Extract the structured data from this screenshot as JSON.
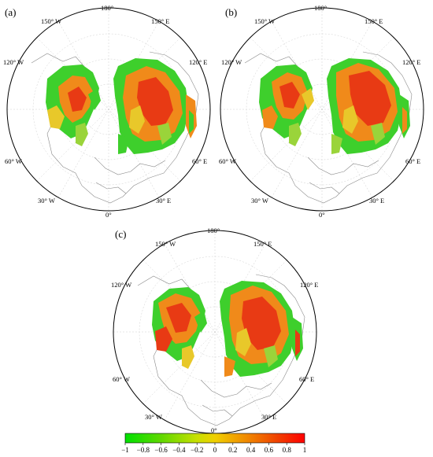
{
  "panels": [
    {
      "id": "a",
      "label": "(a)"
    },
    {
      "id": "b",
      "label": "(b)"
    },
    {
      "id": "c",
      "label": "(c)"
    }
  ],
  "longitude_labels": {
    "top": "180°",
    "w150": "150° W",
    "e150": "150° E",
    "w120": "120° W",
    "e120": "120° E",
    "w60": "60° W",
    "e60": "60° E",
    "w30": "30° W",
    "e30": "30° E",
    "bottom": "0°"
  },
  "colorbar": {
    "ticks": [
      "−1",
      "−0.8",
      "−0.6",
      "−0.4",
      "−0.2",
      "0",
      "0.2",
      "0.4",
      "0.6",
      "0.8",
      "1"
    ],
    "range": [
      -1,
      1
    ],
    "colors": [
      "#00e000",
      "#7cd800",
      "#d8e000",
      "#f0a000",
      "#f05000",
      "#ff0000"
    ]
  },
  "map_colors": {
    "land_outline": "#8a8a8a",
    "grid": "#c8c8c8",
    "green": "#22cc22",
    "lightgreen": "#9ad43a",
    "yellow": "#e8c82a",
    "orange": "#f08a1a",
    "red": "#e83a14"
  }
}
